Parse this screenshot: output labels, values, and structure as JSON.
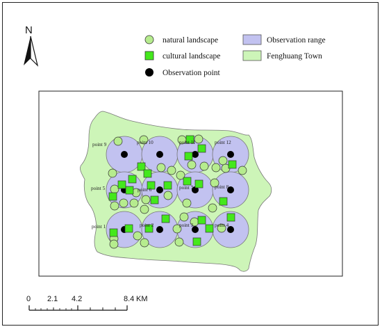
{
  "north_arrow": {
    "label": "N",
    "icon": "north-arrow-icon"
  },
  "legend": {
    "items": [
      {
        "label": "natural landscape",
        "symbol": "circle",
        "fill": "#b6ec8e"
      },
      {
        "label": "cultural landscape",
        "symbol": "square",
        "fill": "#44e81c"
      },
      {
        "label": "Observation point",
        "symbol": "dot",
        "fill": "#000000"
      },
      {
        "label": "Observation range",
        "symbol": "rect",
        "fill": "#c2c2f0"
      },
      {
        "label": "Fenghuang Town",
        "symbol": "rect",
        "fill": "#cdf5b8"
      }
    ]
  },
  "map": {
    "points": [
      {
        "label": "point 1"
      },
      {
        "label": "point 2"
      },
      {
        "label": "point 3"
      },
      {
        "label": "point 4"
      },
      {
        "label": "point 5"
      },
      {
        "label": "point 6"
      },
      {
        "label": "point 7"
      },
      {
        "label": "point 8"
      },
      {
        "label": "point 9"
      },
      {
        "label": "point 10"
      },
      {
        "label": "point 11"
      },
      {
        "label": "point 12"
      }
    ]
  },
  "scale_bar": {
    "ticks": [
      "0",
      "2.1",
      "4.2",
      "8.4"
    ],
    "unit": "KM"
  },
  "colors": {
    "town": "#cdf5b8",
    "range": "#c2c2f0",
    "natural": "#b6ec8e",
    "cultural": "#44e81c",
    "observation": "#000000"
  }
}
